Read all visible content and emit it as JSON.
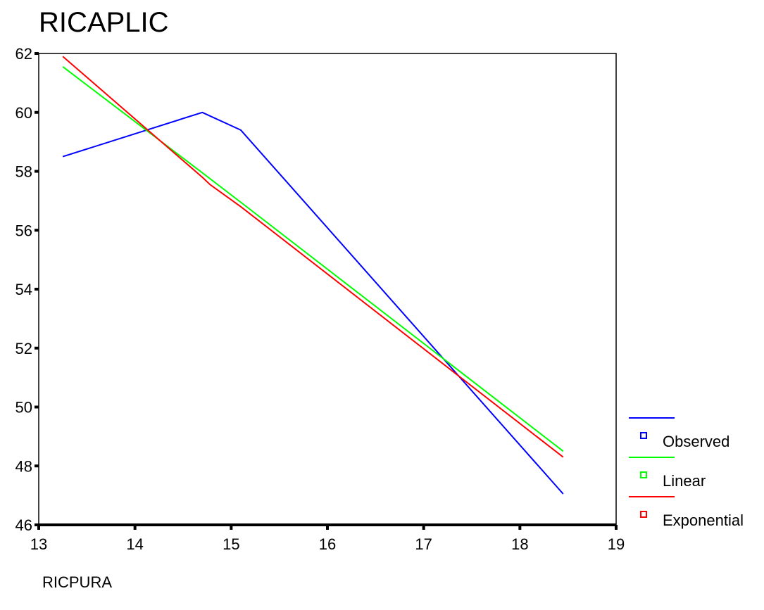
{
  "chart_data": {
    "type": "line",
    "title": "RICAPLIC",
    "xlabel": "RICPURA",
    "ylabel": "",
    "xlim": [
      13,
      19
    ],
    "ylim": [
      46,
      62
    ],
    "x_ticks": [
      13,
      14,
      15,
      16,
      17,
      18,
      19
    ],
    "y_ticks": [
      46,
      48,
      50,
      52,
      54,
      56,
      58,
      60,
      62
    ],
    "grid": false,
    "legend_position": "bottom-right",
    "series": [
      {
        "name": "Observed",
        "color": "#0000ff",
        "x": [
          13.25,
          14.7,
          15.1,
          18.45
        ],
        "y": [
          58.5,
          60.0,
          59.4,
          47.05
        ]
      },
      {
        "name": "Linear",
        "color": "#00ff00",
        "x": [
          13.25,
          14.7,
          15.1,
          18.45
        ],
        "y": [
          61.55,
          57.95,
          56.95,
          48.5
        ]
      },
      {
        "name": "Exponential",
        "color": "#ff0000",
        "x": [
          13.25,
          14.7,
          14.78,
          15.1,
          18.45
        ],
        "y": [
          61.9,
          57.8,
          57.55,
          56.8,
          48.3
        ]
      }
    ]
  }
}
